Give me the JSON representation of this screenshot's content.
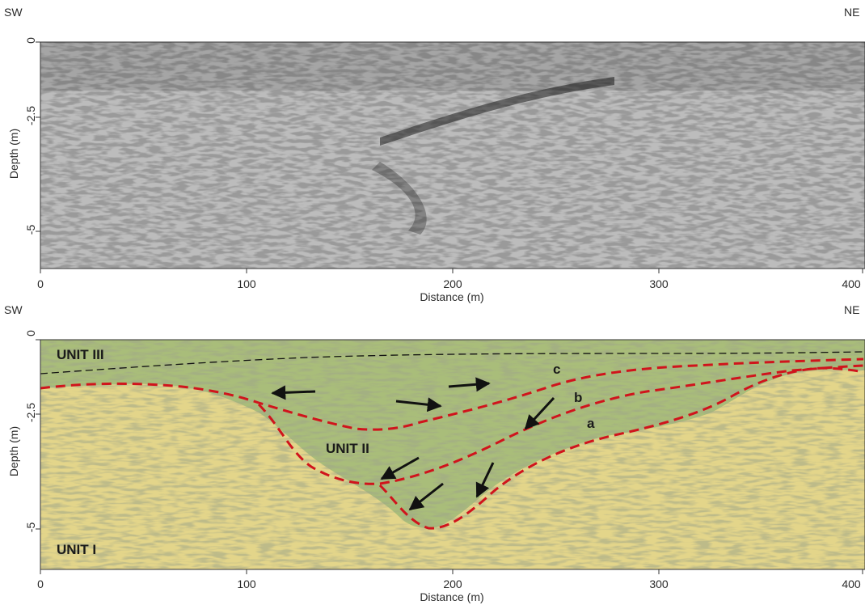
{
  "figure": {
    "panels": [
      {
        "orientation_left": "SW",
        "orientation_right": "NE",
        "xlabel": "Distance (m)",
        "ylabel": "Depth (m)",
        "x_ticks": [
          "0",
          "100",
          "200",
          "300",
          "400"
        ],
        "y_ticks": [
          "0",
          "-2.5",
          "-5"
        ]
      },
      {
        "orientation_left": "SW",
        "orientation_right": "NE",
        "xlabel": "Distance (m)",
        "ylabel": "Depth (m)",
        "x_ticks": [
          "0",
          "100",
          "200",
          "300",
          "400"
        ],
        "y_ticks": [
          "0",
          "-2.5",
          "-5"
        ],
        "units": [
          {
            "label": "UNIT III"
          },
          {
            "label": "UNIT II"
          },
          {
            "label": "UNIT I"
          }
        ],
        "horizons": [
          {
            "label": "c"
          },
          {
            "label": "b"
          },
          {
            "label": "a"
          }
        ]
      }
    ],
    "colors": {
      "unit_ii_iii_fill": "#a9bd7a",
      "unit_i_fill": "#e3d58a",
      "horizon_line": "#d0141c"
    }
  }
}
